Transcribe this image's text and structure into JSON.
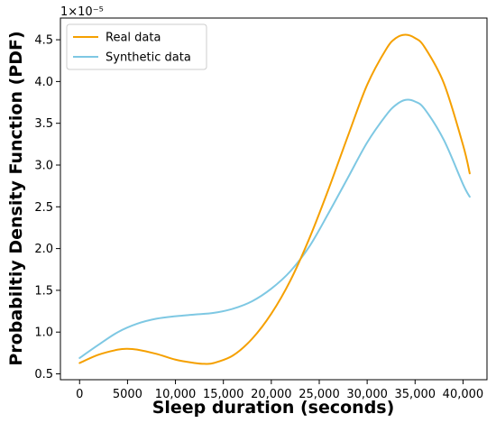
{
  "chart_data": {
    "type": "line",
    "title": "",
    "xlabel": "Sleep duration (seconds)",
    "ylabel": "Probabiltiy Density Function (PDF)",
    "y_scale_label": "1×10⁻⁵",
    "xlim": [
      -2000,
      42500
    ],
    "ylim": [
      0.43,
      4.76
    ],
    "x_ticks": [
      0,
      5000,
      10000,
      15000,
      20000,
      25000,
      30000,
      35000,
      40000
    ],
    "x_tick_labels": [
      "0",
      "5000",
      "10,000",
      "15,000",
      "20,000",
      "25,000",
      "30,000",
      "35,000",
      "40,000"
    ],
    "y_ticks": [
      0.5,
      1.0,
      1.5,
      2.0,
      2.5,
      3.0,
      3.5,
      4.0,
      4.5
    ],
    "y_tick_labels": [
      "0.5",
      "1.0",
      "1.5",
      "2.0",
      "2.5",
      "3.0",
      "3.5",
      "4.0",
      "4.5"
    ],
    "legend_position": "upper-left",
    "grid": false,
    "series": [
      {
        "name": "Real data",
        "color": "#f5a000",
        "x": [
          0,
          2000,
          4000,
          5000,
          6000,
          8000,
          10000,
          12000,
          13000,
          14000,
          16000,
          18000,
          20000,
          22000,
          24000,
          26000,
          28000,
          30000,
          32000,
          33000,
          34000,
          35000,
          36000,
          38000,
          40000,
          40700
        ],
        "values": [
          0.63,
          0.73,
          0.79,
          0.8,
          0.79,
          0.74,
          0.67,
          0.63,
          0.62,
          0.63,
          0.72,
          0.92,
          1.22,
          1.62,
          2.13,
          2.72,
          3.35,
          3.96,
          4.39,
          4.52,
          4.56,
          4.52,
          4.41,
          3.98,
          3.24,
          2.9
        ]
      },
      {
        "name": "Synthetic data",
        "color": "#7ec8e3",
        "x": [
          0,
          2000,
          4000,
          6000,
          8000,
          10000,
          12000,
          14000,
          16000,
          18000,
          20000,
          22000,
          24000,
          26000,
          28000,
          30000,
          32000,
          33000,
          34000,
          35000,
          36000,
          38000,
          40000,
          40700
        ],
        "values": [
          0.69,
          0.85,
          1.0,
          1.1,
          1.16,
          1.19,
          1.21,
          1.23,
          1.28,
          1.37,
          1.52,
          1.73,
          2.03,
          2.43,
          2.85,
          3.27,
          3.6,
          3.72,
          3.78,
          3.76,
          3.67,
          3.3,
          2.77,
          2.62
        ]
      }
    ]
  }
}
